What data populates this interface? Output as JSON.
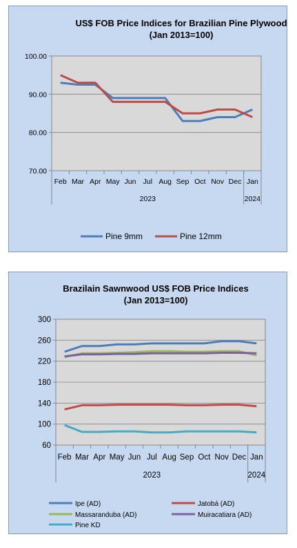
{
  "chart_data": [
    {
      "type": "line",
      "title": "US$ FOB Price Indices for Brazilian  Pine Plywood",
      "subtitle": "(Jan 2013=100)",
      "categories": [
        "Feb",
        "Mar",
        "Apr",
        "May",
        "Jun",
        "Jul",
        "Aug",
        "Sep",
        "Oct",
        "Nov",
        "Dec",
        "Jan"
      ],
      "year_groups": [
        {
          "label": "2023",
          "span": 11
        },
        {
          "label": "2024",
          "span": 1
        }
      ],
      "ylim": [
        70,
        100
      ],
      "yticks": [
        "100.00",
        "90.00",
        "80.00",
        "70.00"
      ],
      "ytick_values": [
        100,
        90,
        80,
        70
      ],
      "grid": true,
      "legend_position": "bottom",
      "series": [
        {
          "name": "Pine 9mm",
          "color": "#4a7ebb",
          "values": [
            93,
            92.5,
            92.5,
            89,
            89,
            89,
            89,
            83,
            83,
            84,
            84,
            86
          ]
        },
        {
          "name": "Pine 12mm",
          "color": "#be4b48",
          "values": [
            95,
            93,
            93,
            88,
            88,
            88,
            88,
            85,
            85,
            86,
            86,
            84
          ]
        }
      ]
    },
    {
      "type": "line",
      "title": "Brazilain Sawnwood US$ FOB Price Indices",
      "subtitle": "(Jan 2013=100)",
      "categories": [
        "Feb",
        "Mar",
        "Apr",
        "May",
        "Jun",
        "Jul",
        "Aug",
        "Sep",
        "Oct",
        "Nov",
        "Dec",
        "Jan"
      ],
      "year_groups": [
        {
          "label": "2023",
          "span": 11
        },
        {
          "label": "2024",
          "span": 1
        }
      ],
      "ylim": [
        60,
        300
      ],
      "yticks": [
        "300",
        "260",
        "220",
        "180",
        "140",
        "100",
        "60"
      ],
      "ytick_values": [
        300,
        260,
        220,
        180,
        140,
        100,
        60
      ],
      "grid": true,
      "legend_position": "bottom",
      "series": [
        {
          "name": "Ipe (AD)",
          "color": "#4a7ebb",
          "values": [
            238,
            249,
            249,
            252,
            252,
            254,
            254,
            254,
            254,
            258,
            258,
            254
          ]
        },
        {
          "name": "Jatobá (AD)",
          "color": "#be4b48",
          "values": [
            128,
            136,
            136,
            137,
            137,
            137,
            137,
            136,
            136,
            137,
            137,
            134
          ]
        },
        {
          "name": "Massaranduba (AD)",
          "color": "#98b954",
          "values": [
            228,
            235,
            235,
            236,
            237,
            239,
            239,
            238,
            238,
            239,
            239,
            231
          ]
        },
        {
          "name": "Muiracatiara (AD)",
          "color": "#7d60a0",
          "values": [
            229,
            233,
            233,
            234,
            234,
            235,
            235,
            235,
            235,
            236,
            236,
            235
          ]
        },
        {
          "name": "Pine KD",
          "color": "#46aac5",
          "values": [
            98,
            85,
            85,
            86,
            86,
            84,
            84,
            86,
            86,
            86,
            86,
            84
          ]
        }
      ]
    }
  ]
}
